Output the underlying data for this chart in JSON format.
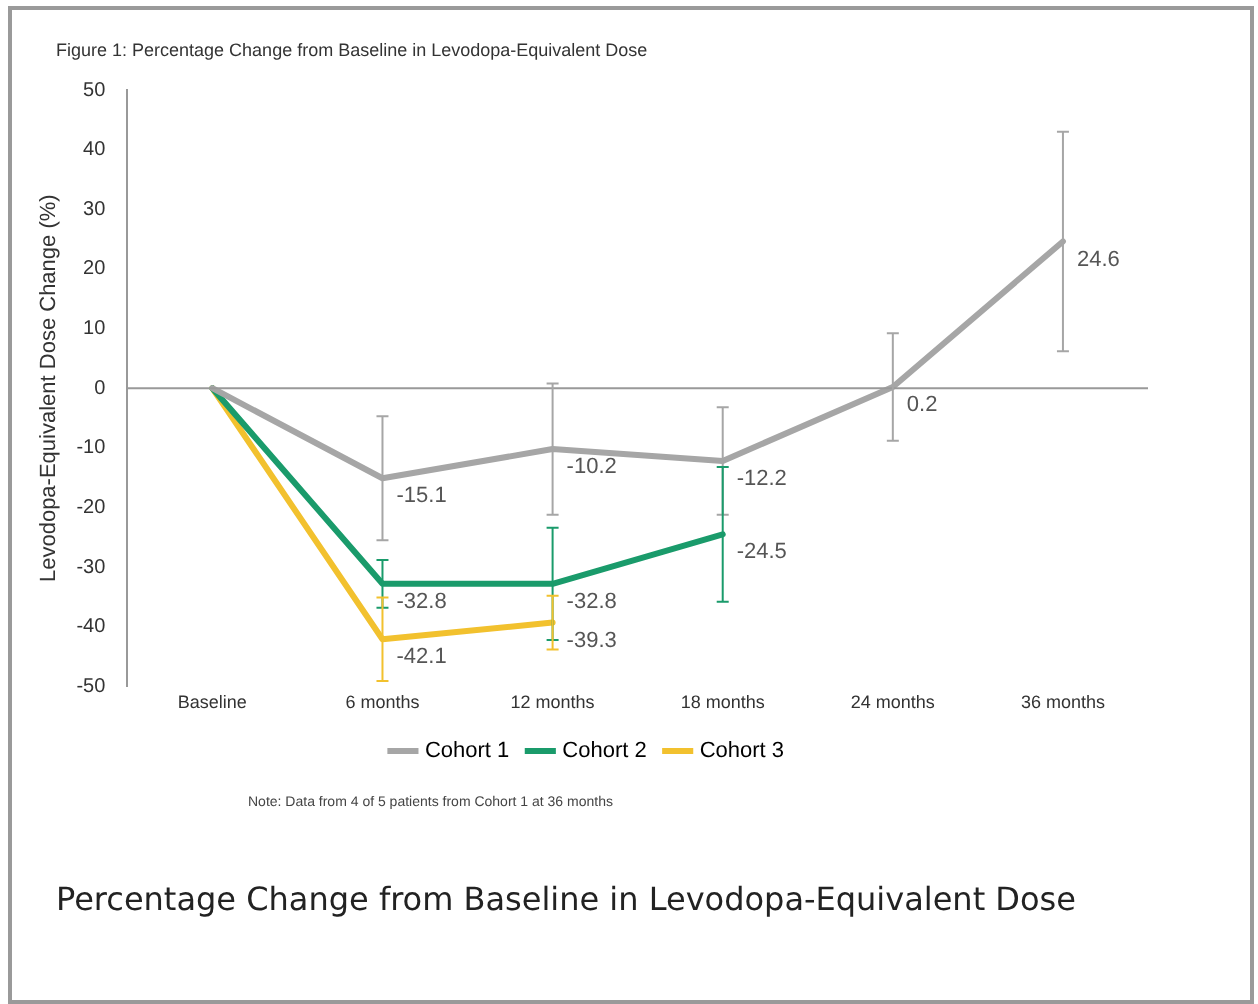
{
  "chart_data": {
    "type": "line",
    "title": "Figure 1: Percentage Change from Baseline in Levodopa-Equivalent Dose",
    "ylabel": "Levodopa-Equivalent Dose Change (%)",
    "categories": [
      "Baseline",
      "6 months",
      "12 months",
      "18 months",
      "24 months",
      "36 months"
    ],
    "series": [
      {
        "name": "Cohort 1",
        "color": "#a6a6a6",
        "values": [
          0,
          -15.1,
          -10.2,
          -12.2,
          0.2,
          24.6
        ],
        "value_labels": [
          null,
          "-15.1",
          "-10.2",
          "-12.2",
          "0.2",
          "24.6"
        ],
        "errors": [
          null,
          10.4,
          11,
          9,
          9,
          18.4
        ]
      },
      {
        "name": "Cohort 2",
        "color": "#1a9b6b",
        "values": [
          0,
          -32.8,
          -32.8,
          -24.5,
          null,
          null
        ],
        "value_labels": [
          null,
          "-32.8",
          "-32.8",
          "-24.5",
          null,
          null
        ],
        "errors": [
          null,
          4,
          9.4,
          11.3,
          null,
          null
        ]
      },
      {
        "name": "Cohort 3",
        "color": "#f2c12e",
        "values": [
          0,
          -42.1,
          -39.3,
          null,
          null,
          null
        ],
        "value_labels": [
          null,
          "-42.1",
          "-39.3",
          null,
          null,
          null
        ],
        "errors": [
          null,
          7,
          4.5,
          null,
          null,
          null
        ]
      }
    ],
    "ylim": [
      -50,
      50
    ],
    "yticks": [
      -50,
      -40,
      -30,
      -20,
      -10,
      0,
      10,
      20,
      30,
      40,
      50
    ],
    "ref_lines": [
      {
        "axis": "y",
        "value": 0,
        "color": "#999999"
      }
    ],
    "grid": false,
    "legend": "bottom",
    "marker": "none",
    "line_style": "solid",
    "annotations": [
      "Note: Data from 4 of 5 patients from Cohort 1 at 36 months",
      "Percentage Change from Baseline in Levodopa-Equivalent Dose"
    ]
  }
}
